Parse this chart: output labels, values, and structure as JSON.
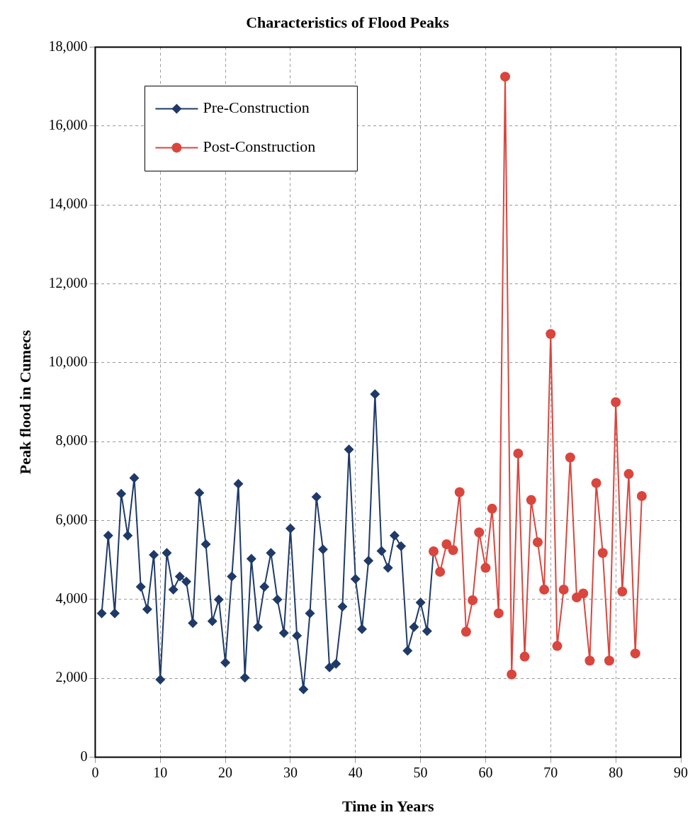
{
  "chart_data": {
    "type": "line",
    "title": "Characteristics of Flood Peaks",
    "xlabel": "Time in Years",
    "ylabel": "Peak flood in Cumecs",
    "xlim": [
      0,
      90
    ],
    "xticks": [
      0,
      10,
      20,
      30,
      40,
      50,
      60,
      70,
      80,
      90
    ],
    "ylim": [
      0,
      18000
    ],
    "yticks": [
      {
        "value": 0,
        "label": "0"
      },
      {
        "value": 2000,
        "label": "2,000"
      },
      {
        "value": 4000,
        "label": "4,000"
      },
      {
        "value": 6000,
        "label": "6,000"
      },
      {
        "value": 8000,
        "label": "8,000"
      },
      {
        "value": 10000,
        "label": "10,000"
      },
      {
        "value": 12000,
        "label": "12,000"
      },
      {
        "value": 14000,
        "label": "14,000"
      },
      {
        "value": 16000,
        "label": "16,000"
      },
      {
        "value": 18000,
        "label": "18,000"
      }
    ],
    "grid": true,
    "legend": "top left",
    "line_style": "solid",
    "series": [
      {
        "name": "Pre-Construction",
        "color": "#1f3a68",
        "marker": "diamond",
        "x": [
          1,
          2,
          3,
          4,
          5,
          6,
          7,
          8,
          9,
          10,
          11,
          12,
          13,
          14,
          15,
          16,
          17,
          18,
          19,
          20,
          21,
          22,
          23,
          24,
          25,
          26,
          27,
          28,
          29,
          30,
          31,
          32,
          33,
          34,
          35,
          36,
          37,
          38,
          39,
          40,
          41,
          42,
          43,
          44,
          45,
          46,
          47,
          48,
          49,
          50,
          51,
          52
        ],
        "values": [
          3650,
          5620,
          3650,
          6680,
          5620,
          7080,
          4320,
          3750,
          5130,
          1970,
          5180,
          4250,
          4580,
          4450,
          3400,
          6700,
          5400,
          3450,
          4000,
          2400,
          4580,
          6930,
          2020,
          5030,
          3300,
          4320,
          5180,
          4000,
          3150,
          5800,
          3080,
          1720,
          3650,
          6600,
          5270,
          2280,
          2370,
          3820,
          7800,
          4520,
          3250,
          4980,
          9200,
          5230,
          4800,
          5620,
          5350,
          2700,
          3300,
          3920,
          3200,
          5220
        ]
      },
      {
        "name": "Post-Construction",
        "color": "#d9463e",
        "marker": "circle",
        "x": [
          52,
          53,
          54,
          55,
          56,
          57,
          58,
          59,
          60,
          61,
          62,
          63,
          64,
          65,
          66,
          67,
          68,
          69,
          70,
          71,
          72,
          73,
          74,
          75,
          76,
          77,
          78,
          79,
          80,
          81,
          82,
          83,
          84
        ],
        "values": [
          5220,
          4700,
          5400,
          5250,
          6720,
          3180,
          3980,
          5700,
          4800,
          6300,
          3650,
          17250,
          2100,
          7700,
          2550,
          6520,
          5450,
          4250,
          10730,
          2820,
          4250,
          7600,
          4050,
          4150,
          2450,
          6950,
          5180,
          2450,
          9000,
          4200,
          7180,
          2630,
          6620
        ]
      }
    ]
  }
}
